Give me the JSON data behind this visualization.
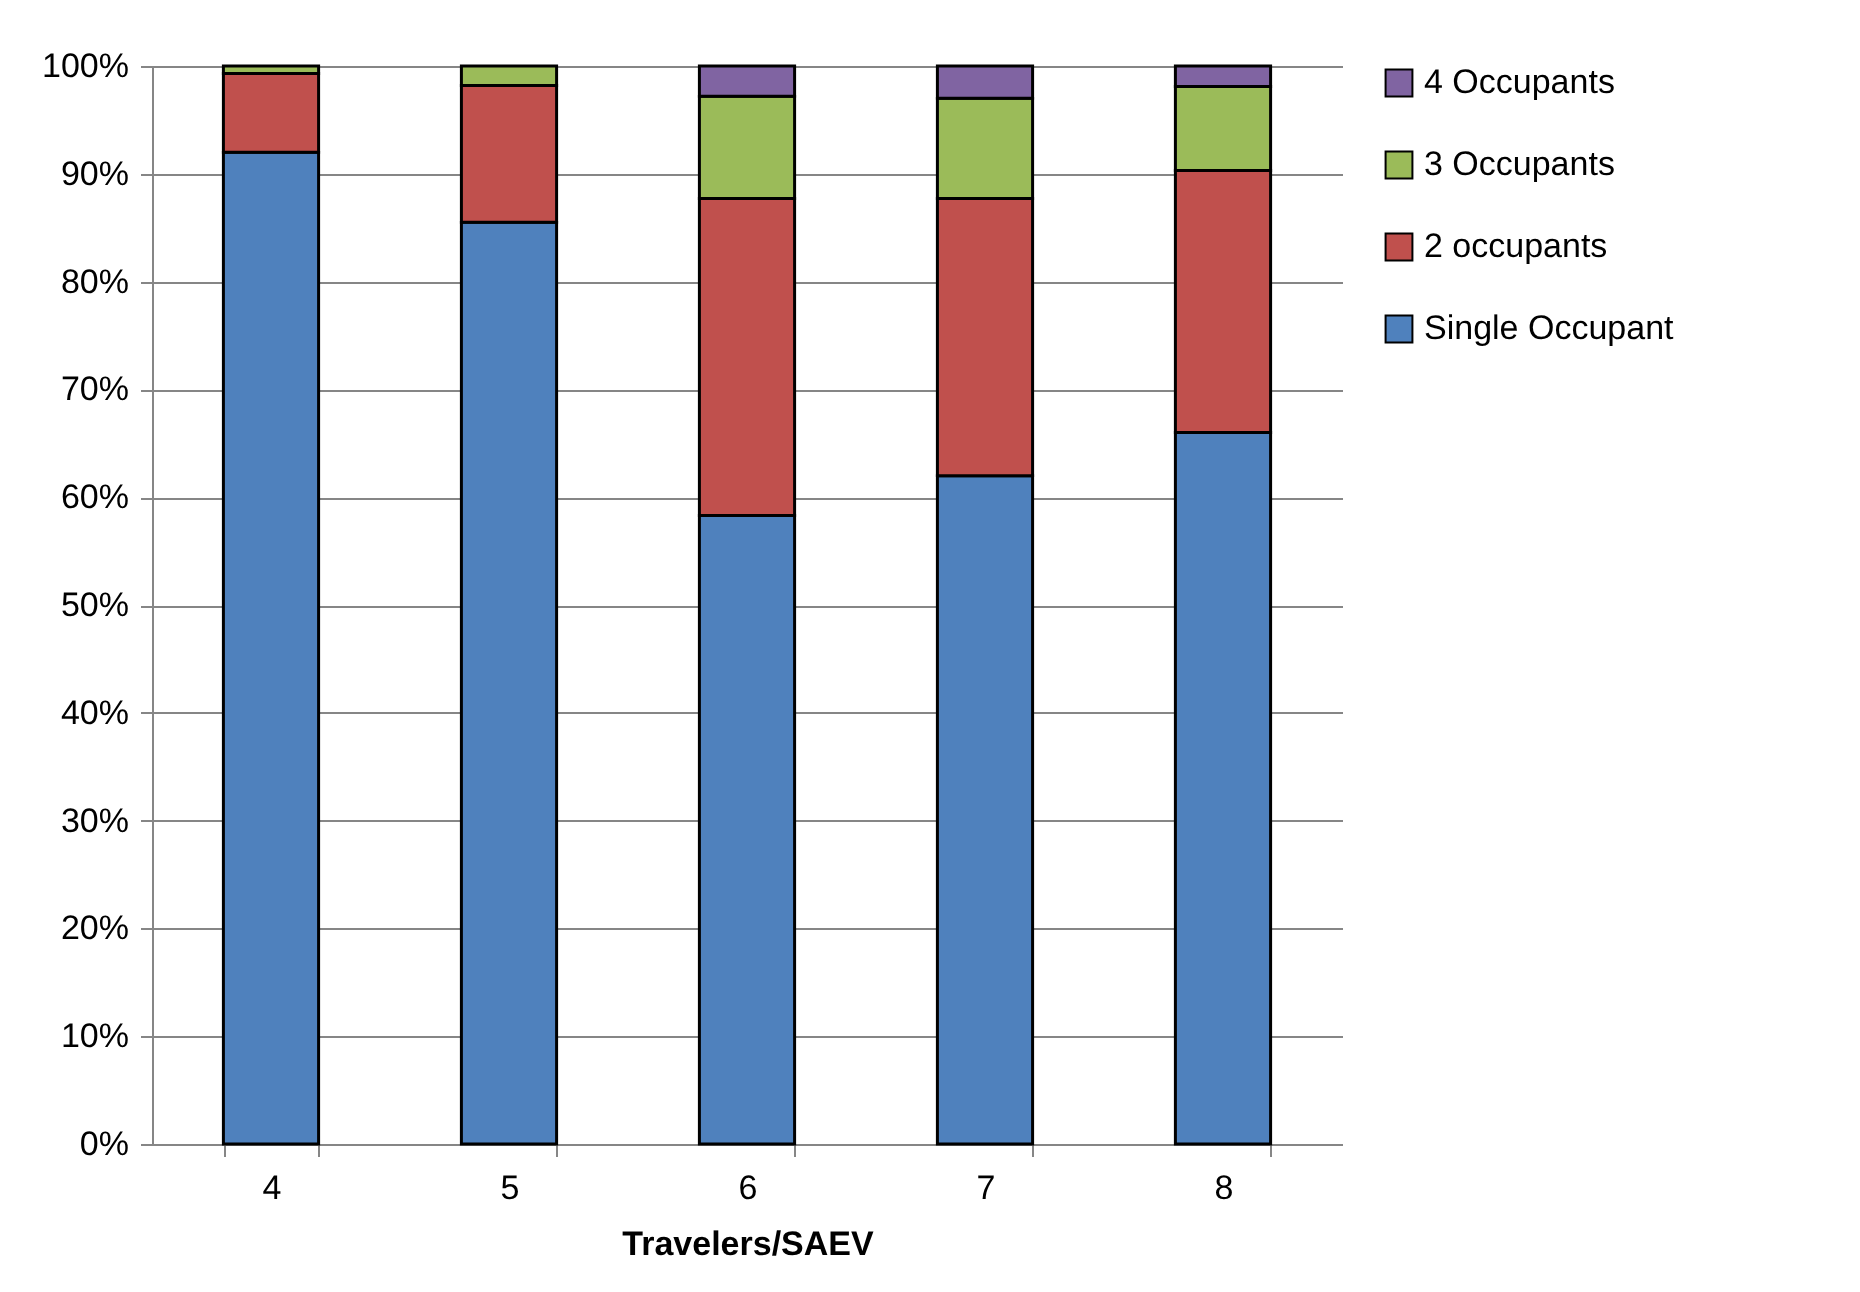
{
  "chart_data": {
    "type": "bar",
    "stacked": true,
    "xlabel": "Travelers/SAEV",
    "categories": [
      "4",
      "5",
      "6",
      "7",
      "8"
    ],
    "series": [
      {
        "name": "Single Occupant",
        "color": "#4f81bd",
        "values": [
          92.0,
          85.5,
          58.3,
          62.0,
          66.0
        ]
      },
      {
        "name": "2 occupants",
        "color": "#c0504d",
        "values": [
          7.3,
          12.7,
          29.4,
          25.7,
          24.3
        ]
      },
      {
        "name": "3 Occupants",
        "color": "#9bbb59",
        "values": [
          0.7,
          1.8,
          9.5,
          9.3,
          7.8
        ]
      },
      {
        "name": "4 Occupants",
        "color": "#8064a2",
        "values": [
          0,
          0,
          2.8,
          3.0,
          1.9
        ]
      }
    ],
    "ylim": [
      0,
      100
    ],
    "yticks": [
      {
        "value": 0,
        "label": "0%"
      },
      {
        "value": 10,
        "label": "10%"
      },
      {
        "value": 20,
        "label": "20%"
      },
      {
        "value": 30,
        "label": "30%"
      },
      {
        "value": 40,
        "label": "40%"
      },
      {
        "value": 50,
        "label": "50%"
      },
      {
        "value": 60,
        "label": "60%"
      },
      {
        "value": 70,
        "label": "70%"
      },
      {
        "value": 80,
        "label": "80%"
      },
      {
        "value": 90,
        "label": "90%"
      },
      {
        "value": 100,
        "label": "100%"
      }
    ],
    "grid": "y",
    "legend": "right"
  }
}
